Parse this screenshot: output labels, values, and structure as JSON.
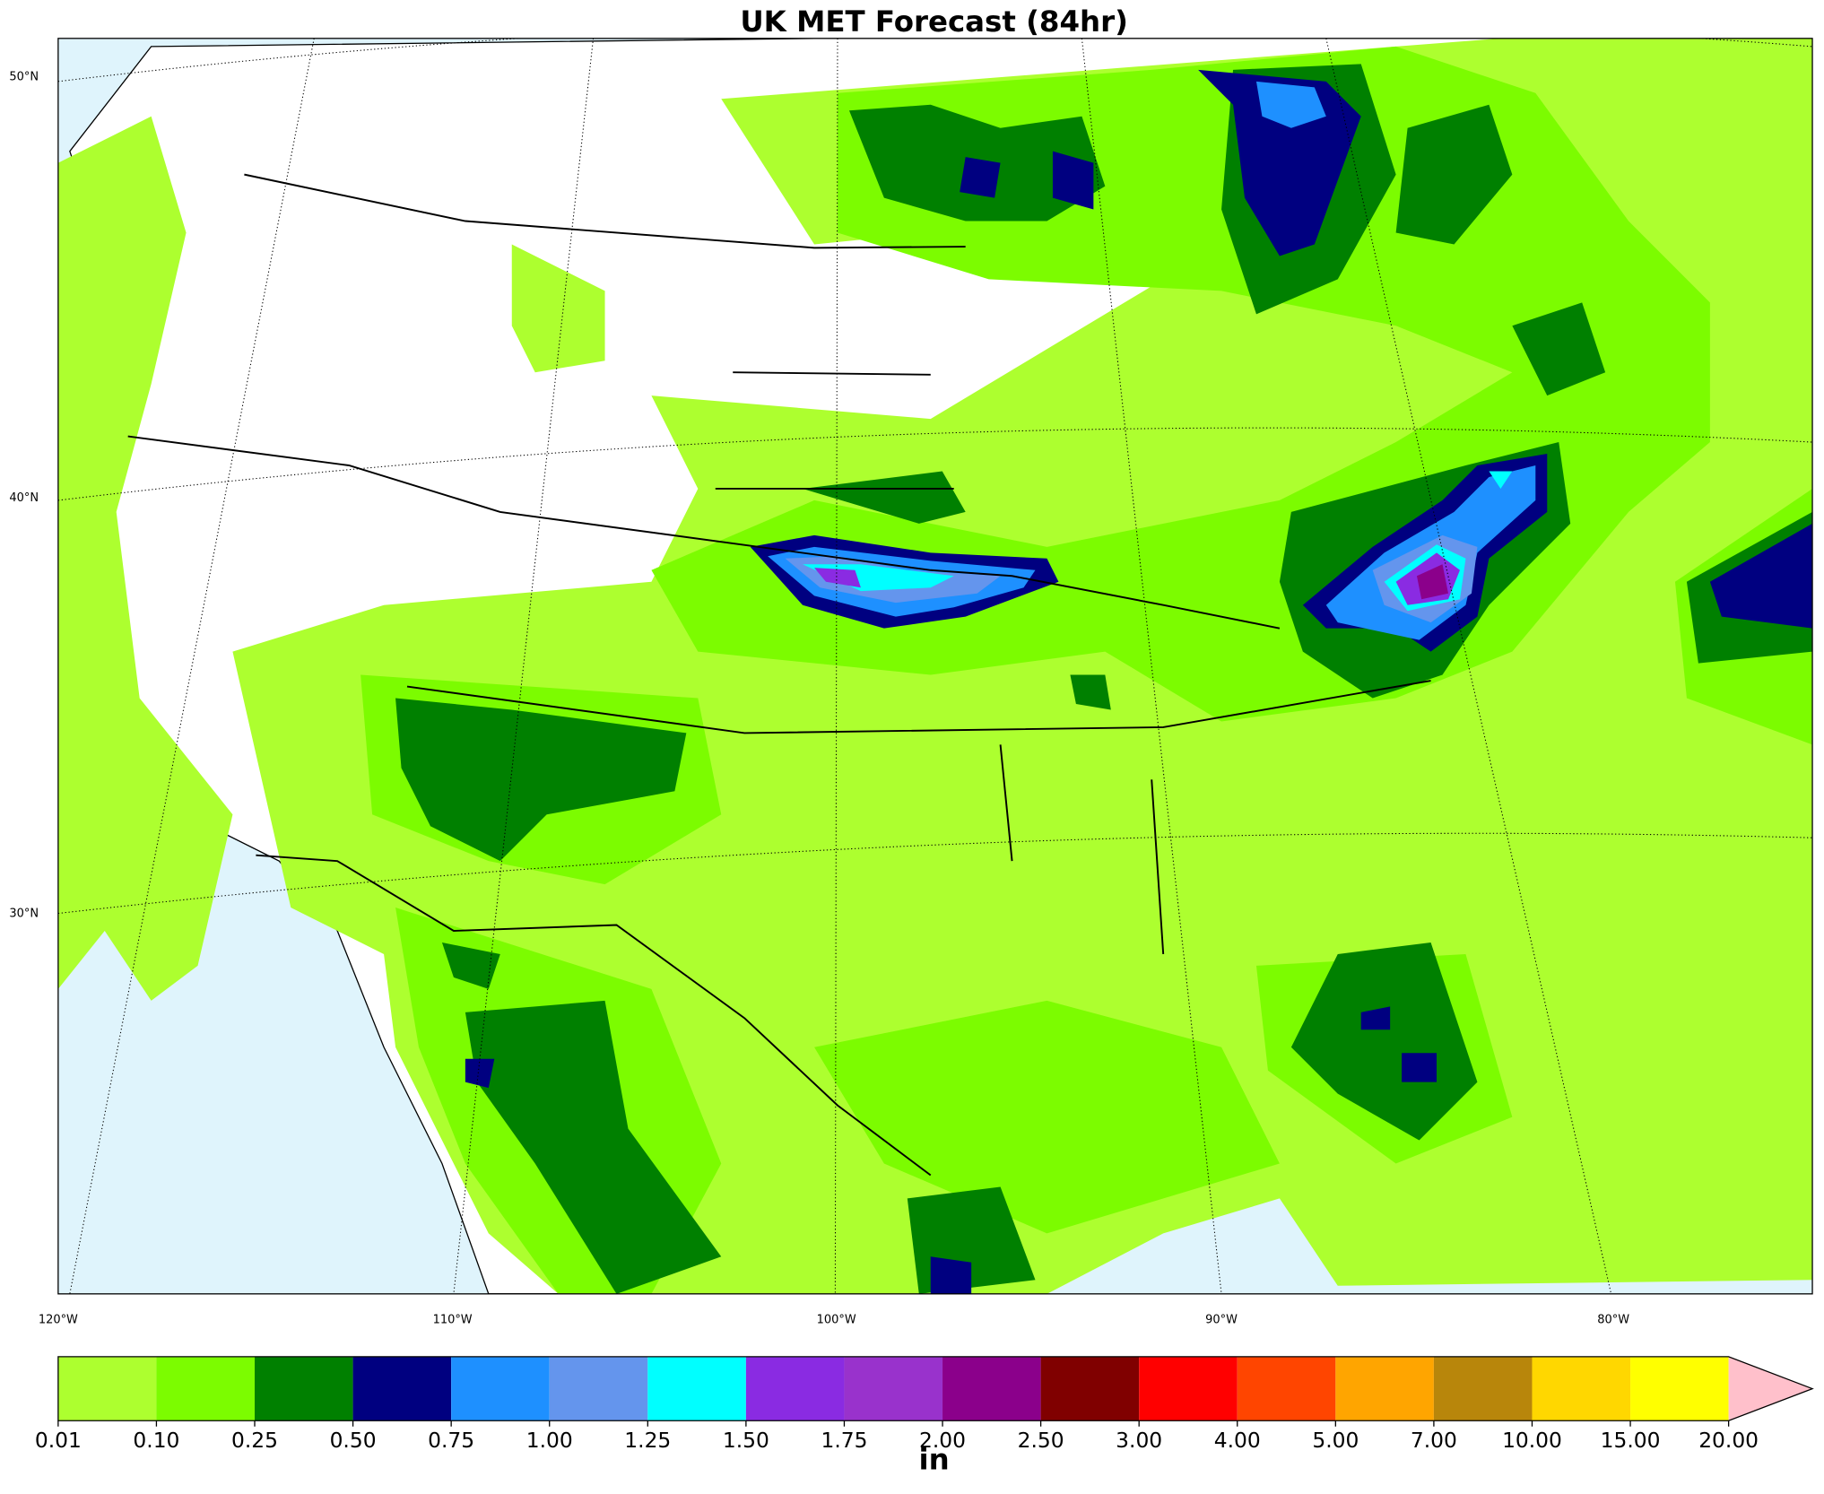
{
  "title": "UK MET Forecast (84hr)",
  "map": {
    "lat_labels": [
      "50°N",
      "40°N",
      "30°N"
    ],
    "lon_labels": [
      "120°W",
      "110°W",
      "100°W",
      "90°W",
      "80°W"
    ]
  },
  "colorbar": {
    "levels": [
      {
        "value": 0.01,
        "label": "0.01"
      },
      {
        "value": 0.1,
        "label": "0.10"
      },
      {
        "value": 0.25,
        "label": "0.25"
      },
      {
        "value": 0.5,
        "label": "0.50"
      },
      {
        "value": 0.75,
        "label": "0.75"
      },
      {
        "value": 1,
        "label": "1.00"
      },
      {
        "value": 1.25,
        "label": "1.25"
      },
      {
        "value": 1.5,
        "label": "1.50"
      },
      {
        "value": 1.75,
        "label": "1.75"
      },
      {
        "value": 2,
        "label": "2.00"
      },
      {
        "value": 2.5,
        "label": "2.50"
      },
      {
        "value": 3,
        "label": "3.00"
      },
      {
        "value": 4,
        "label": "4.00"
      },
      {
        "value": 5,
        "label": "5.00"
      },
      {
        "value": 7,
        "label": "7.00"
      },
      {
        "value": 10,
        "label": "10.00"
      },
      {
        "value": 15,
        "label": "15.00"
      },
      {
        "value": 20,
        "label": "20.00"
      }
    ],
    "colors": [
      "#adff2f",
      "#7cfc00",
      "#008000",
      "#000080",
      "#1e90ff",
      "#6495ed",
      "#00ffff",
      "#8a2be2",
      "#9932cc",
      "#8b008b",
      "#800000",
      "#ff0000",
      "#ff4500",
      "#ffa500",
      "#b8860b",
      "#ffd700",
      "#ffff00"
    ],
    "extend_color": "#ffc0cb",
    "unit": "in"
  }
}
